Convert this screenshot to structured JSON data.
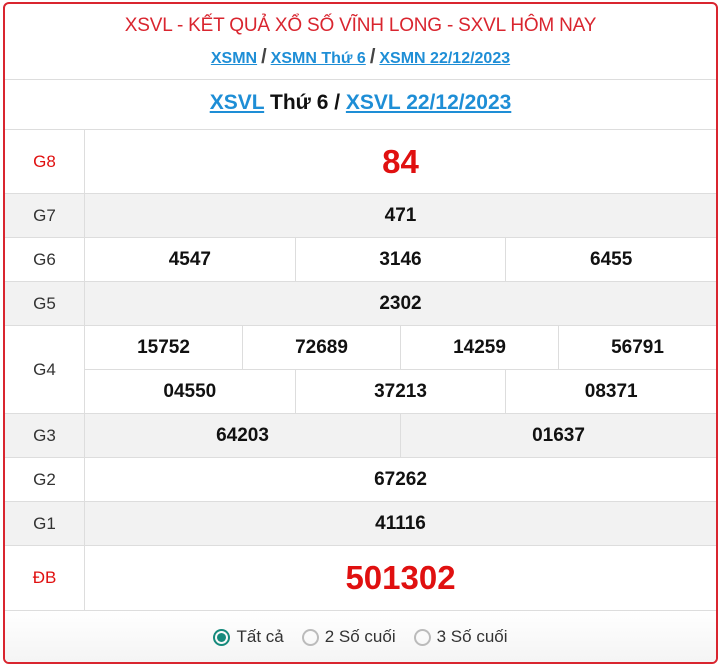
{
  "header": {
    "title": "XSVL - KẾT QUẢ XỔ SỐ VĨNH LONG - SXVL HÔM NAY",
    "breadcrumbs": [
      "XSMN",
      "XSMN Thứ 6",
      "XSMN 22/12/2023"
    ],
    "separator": "/"
  },
  "subtitle": {
    "link1": "XSVL",
    "middle": " Thứ 6 / ",
    "link2": "XSVL 22/12/2023"
  },
  "prizes": [
    {
      "label": "G8",
      "lines": [
        [
          "84"
        ]
      ],
      "highlight": true
    },
    {
      "label": "G7",
      "lines": [
        [
          "471"
        ]
      ]
    },
    {
      "label": "G6",
      "lines": [
        [
          "4547",
          "3146",
          "6455"
        ]
      ]
    },
    {
      "label": "G5",
      "lines": [
        [
          "2302"
        ]
      ]
    },
    {
      "label": "G4",
      "lines": [
        [
          "15752",
          "72689",
          "14259",
          "56791"
        ],
        [
          "04550",
          "37213",
          "08371"
        ]
      ]
    },
    {
      "label": "G3",
      "lines": [
        [
          "64203",
          "01637"
        ]
      ]
    },
    {
      "label": "G2",
      "lines": [
        [
          "67262"
        ]
      ]
    },
    {
      "label": "G1",
      "lines": [
        [
          "41116"
        ]
      ]
    },
    {
      "label": "ĐB",
      "lines": [
        [
          "501302"
        ]
      ],
      "highlight": true
    }
  ],
  "filter": {
    "options": [
      "Tất cả",
      "2 Số cuối",
      "3 Số cuối"
    ],
    "selected": "Tất cả"
  },
  "colors": {
    "accent": "#d9252f",
    "link": "#1e8ed6",
    "radio": "#168a7c"
  }
}
